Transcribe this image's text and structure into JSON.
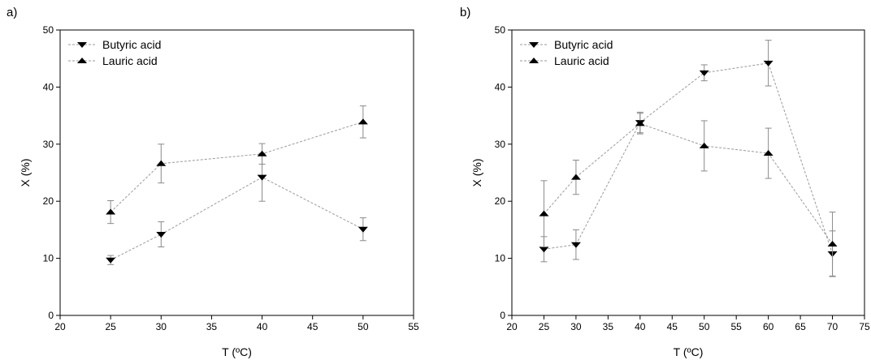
{
  "figure": {
    "panels": [
      "a)",
      "b)"
    ]
  },
  "style": {
    "line_color": "#9a9a9a",
    "errorbar_color": "#8a8a8a",
    "marker_color": "#000000",
    "axis_color": "#000000"
  },
  "chart_data": [
    {
      "type": "line",
      "panel_label": "a)",
      "xlabel": "T (ºC)",
      "ylabel": "X (%)",
      "xlim": [
        20,
        55
      ],
      "ylim": [
        0,
        50
      ],
      "xticks": [
        20,
        25,
        30,
        35,
        40,
        45,
        50,
        55
      ],
      "yticks": [
        0,
        10,
        20,
        30,
        40,
        50
      ],
      "grid": false,
      "legend_position": "top-left",
      "series": [
        {
          "name": "Butyric acid",
          "marker": "triangle-down",
          "x": [
            25,
            30,
            40,
            50
          ],
          "y": [
            9.7,
            14.2,
            24.2,
            15.1
          ],
          "error": [
            0.8,
            2.2,
            4.2,
            2.0
          ]
        },
        {
          "name": "Lauric acid",
          "marker": "triangle-up",
          "x": [
            25,
            30,
            40,
            50
          ],
          "y": [
            18.1,
            26.6,
            28.3,
            33.9
          ],
          "error": [
            2.0,
            3.4,
            1.8,
            2.8
          ]
        }
      ]
    },
    {
      "type": "line",
      "panel_label": "b)",
      "xlabel": "T (ºC)",
      "ylabel": "X (%)",
      "xlim": [
        20,
        75
      ],
      "ylim": [
        0,
        50
      ],
      "xticks": [
        20,
        25,
        30,
        35,
        40,
        45,
        50,
        55,
        60,
        65,
        70,
        75
      ],
      "yticks": [
        0,
        10,
        20,
        30,
        40,
        50
      ],
      "grid": false,
      "legend_position": "top-left",
      "series": [
        {
          "name": "Butyric acid",
          "marker": "triangle-down",
          "x": [
            25,
            30,
            40,
            50,
            60,
            70
          ],
          "y": [
            11.6,
            12.4,
            33.8,
            42.5,
            44.2,
            10.8
          ],
          "error": [
            2.2,
            2.6,
            1.8,
            1.4,
            4.0,
            4.0
          ]
        },
        {
          "name": "Lauric acid",
          "marker": "triangle-up",
          "x": [
            25,
            30,
            40,
            50,
            60,
            70
          ],
          "y": [
            17.8,
            24.2,
            33.6,
            29.7,
            28.4,
            12.5
          ],
          "error": [
            5.8,
            3.0,
            1.8,
            4.4,
            4.4,
            5.6
          ]
        }
      ]
    }
  ]
}
